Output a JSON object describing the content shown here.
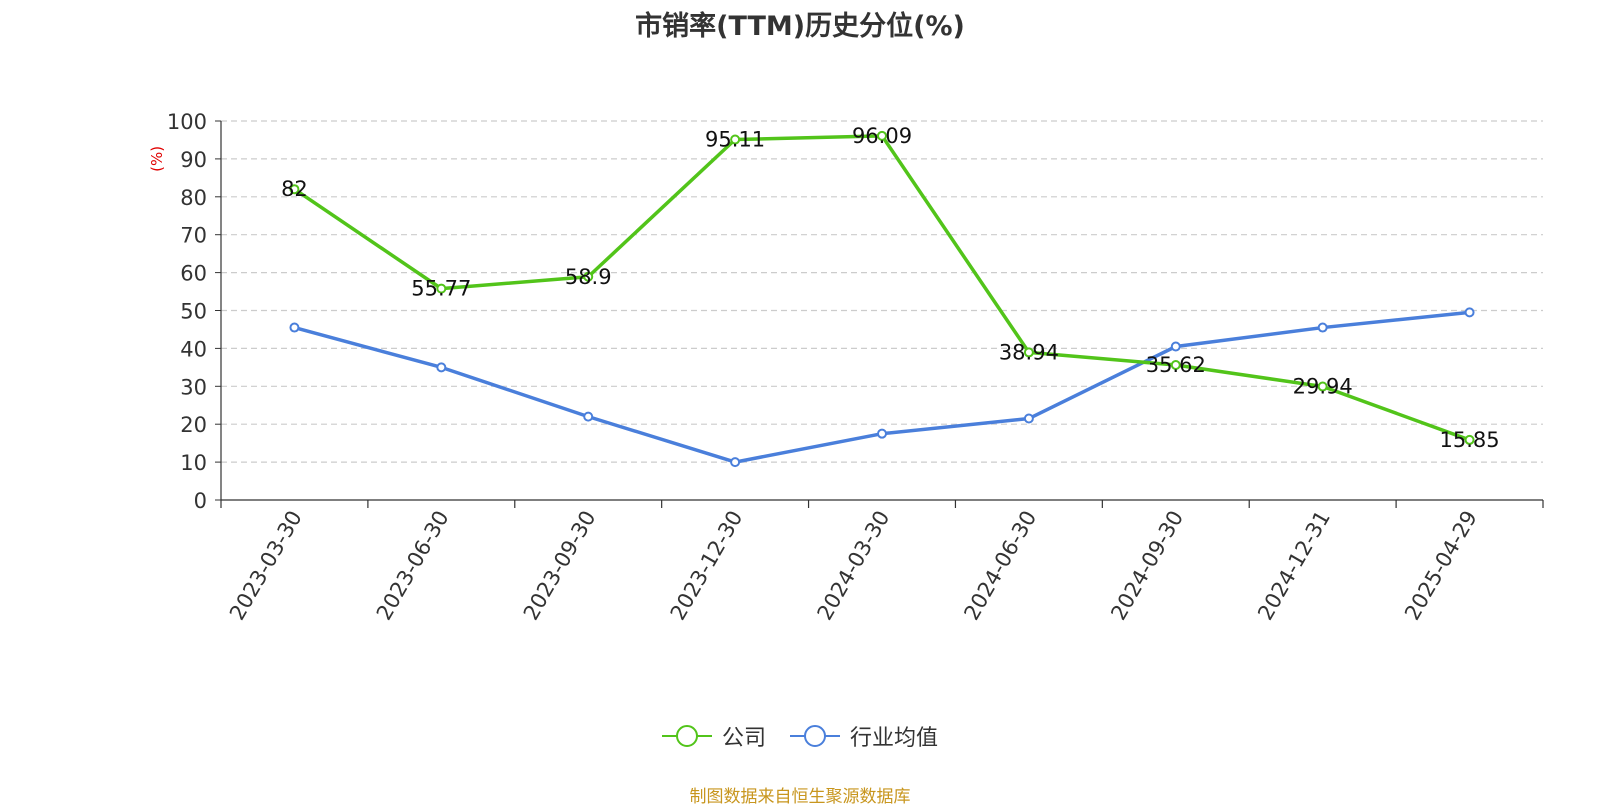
{
  "chart_data": {
    "type": "line",
    "title": "市销率(TTM)历史分位(%)",
    "ylabel": "(%)",
    "categories": [
      "2023-03-30",
      "2023-06-30",
      "2023-09-30",
      "2023-12-30",
      "2024-03-30",
      "2024-06-30",
      "2024-09-30",
      "2024-12-31",
      "2025-04-29"
    ],
    "ylim": [
      0,
      100
    ],
    "yticks": [
      0,
      10,
      20,
      30,
      40,
      50,
      60,
      70,
      80,
      90,
      100
    ],
    "grid": true,
    "legend_position": "bottom-center",
    "series": [
      {
        "name": "公司",
        "color": "#52c41a",
        "values": [
          82,
          55.77,
          58.9,
          95.11,
          96.09,
          38.94,
          35.62,
          29.94,
          15.85
        ],
        "labels": [
          "82",
          "55.77",
          "58.9",
          "95.11",
          "96.09",
          "38.94",
          "35.62",
          "29.94",
          "15.85"
        ]
      },
      {
        "name": "行业均值",
        "color": "#4a7fdb",
        "values": [
          45.5,
          35,
          22,
          10,
          17.5,
          21.5,
          40.5,
          45.5,
          49.5
        ]
      }
    ]
  },
  "source": "制图数据来自恒生聚源数据库"
}
